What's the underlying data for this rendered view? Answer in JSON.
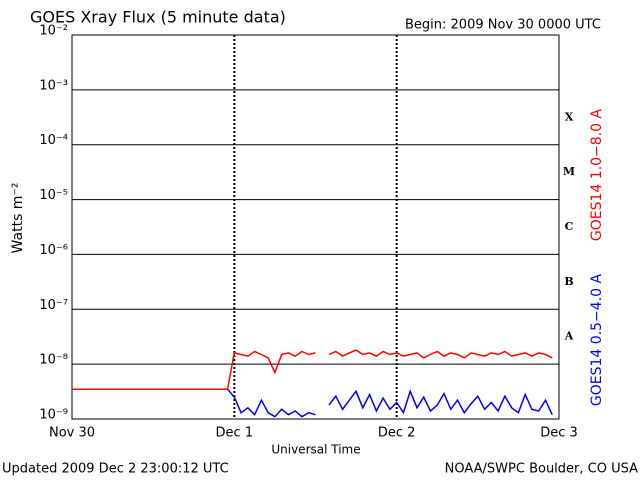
{
  "chart_data": {
    "type": "line",
    "title": "GOES Xray Flux (5 minute data)",
    "subtitle": "Begin:  2009 Nov 30 0000 UTC",
    "y_label": "Watts m⁻²",
    "x_label": "Universal Time",
    "footer_left": "Updated 2009 Dec  2 23:00:12 UTC",
    "footer_right": "NOAA/SWPC Boulder, CO USA",
    "log_y": true,
    "grid": true,
    "class_labels": [
      "A",
      "B",
      "C",
      "M",
      "X"
    ],
    "xlim": [
      0,
      72
    ],
    "xticks": [
      {
        "value": 0,
        "label": "Nov 30"
      },
      {
        "value": 24,
        "label": "Dec 1"
      },
      {
        "value": 48,
        "label": "Dec 2"
      },
      {
        "value": 72,
        "label": "Dec 3"
      }
    ],
    "ylim": [
      1e-09,
      0.01
    ],
    "yticks": [
      {
        "value": 1e-09,
        "label": "10⁻⁹"
      },
      {
        "value": 1e-08,
        "label": "10⁻⁸"
      },
      {
        "value": 1e-07,
        "label": "10⁻⁷"
      },
      {
        "value": 1e-06,
        "label": "10⁻⁶"
      },
      {
        "value": 1e-05,
        "label": "10⁻⁵"
      },
      {
        "value": 0.0001,
        "label": "10⁻⁴"
      },
      {
        "value": 0.001,
        "label": "10⁻³"
      },
      {
        "value": 0.01,
        "label": "10⁻²"
      }
    ],
    "x": [
      0,
      1,
      2,
      3,
      4,
      5,
      6,
      7,
      8,
      9,
      10,
      11,
      12,
      13,
      14,
      15,
      16,
      17,
      18,
      19,
      20,
      21,
      22,
      23,
      24,
      25,
      26,
      27,
      28,
      29,
      30,
      31,
      32,
      33,
      34,
      35,
      36,
      37,
      38,
      39,
      40,
      41,
      42,
      43,
      44,
      45,
      46,
      47,
      48,
      49,
      50,
      51,
      52,
      53,
      54,
      55,
      56,
      57,
      58,
      59,
      60,
      61,
      62,
      63,
      64,
      65,
      66,
      67,
      68,
      69,
      70,
      71,
      72
    ],
    "series": [
      {
        "name": "GOES14 0.5−4.0 A",
        "color": "#0000ff",
        "values": [
          3.5e-09,
          3.5e-09,
          3.5e-09,
          3.5e-09,
          3.5e-09,
          3.5e-09,
          3.5e-09,
          3.5e-09,
          3.5e-09,
          3.5e-09,
          3.5e-09,
          3.5e-09,
          3.5e-09,
          3.5e-09,
          3.5e-09,
          3.5e-09,
          3.5e-09,
          3.5e-09,
          3.5e-09,
          3.5e-09,
          3.5e-09,
          3.5e-09,
          3.5e-09,
          3.5e-09,
          2.5e-09,
          1.3e-09,
          1.6e-09,
          1.2e-09,
          2.2e-09,
          1.3e-09,
          1.1e-09,
          1.5e-09,
          1.2e-09,
          1.4e-09,
          1.1e-09,
          1.3e-09,
          1.2e-09,
          null,
          1.8e-09,
          2.6e-09,
          1.5e-09,
          2.2e-09,
          3.2e-09,
          1.6e-09,
          2.8e-09,
          1.4e-09,
          2.4e-09,
          1.5e-09,
          2e-09,
          1.3e-09,
          3.2e-09,
          1.6e-09,
          2.5e-09,
          1.4e-09,
          1.8e-09,
          2.9e-09,
          1.5e-09,
          2.2e-09,
          1.3e-09,
          1.9e-09,
          2.6e-09,
          1.5e-09,
          2e-09,
          1.4e-09,
          2.6e-09,
          1.6e-09,
          1.3e-09,
          2.8e-09,
          1.5e-09,
          1.4e-09,
          2.2e-09,
          1.2e-09,
          null
        ]
      },
      {
        "name": "GOES14 1.0−8.0 A",
        "color": "#ff0000",
        "values": [
          3.5e-09,
          3.5e-09,
          3.5e-09,
          3.5e-09,
          3.5e-09,
          3.5e-09,
          3.5e-09,
          3.5e-09,
          3.5e-09,
          3.5e-09,
          3.5e-09,
          3.5e-09,
          3.5e-09,
          3.5e-09,
          3.5e-09,
          3.5e-09,
          3.5e-09,
          3.5e-09,
          3.5e-09,
          3.5e-09,
          3.5e-09,
          3.5e-09,
          3.5e-09,
          3.5e-09,
          1.6e-08,
          1.5e-08,
          1.4e-08,
          1.7e-08,
          1.5e-08,
          1.3e-08,
          7e-09,
          1.5e-08,
          1.6e-08,
          1.4e-08,
          1.7e-08,
          1.5e-08,
          1.6e-08,
          null,
          1.5e-08,
          1.7e-08,
          1.4e-08,
          1.6e-08,
          1.8e-08,
          1.5e-08,
          1.6e-08,
          1.4e-08,
          1.7e-08,
          1.5e-08,
          1.6e-08,
          1.4e-08,
          1.5e-08,
          1.6e-08,
          1.3e-08,
          1.5e-08,
          1.7e-08,
          1.4e-08,
          1.6e-08,
          1.5e-08,
          1.3e-08,
          1.6e-08,
          1.5e-08,
          1.4e-08,
          1.6e-08,
          1.5e-08,
          1.7e-08,
          1.4e-08,
          1.5e-08,
          1.6e-08,
          1.4e-08,
          1.6e-08,
          1.5e-08,
          1.3e-08,
          null
        ]
      }
    ]
  }
}
